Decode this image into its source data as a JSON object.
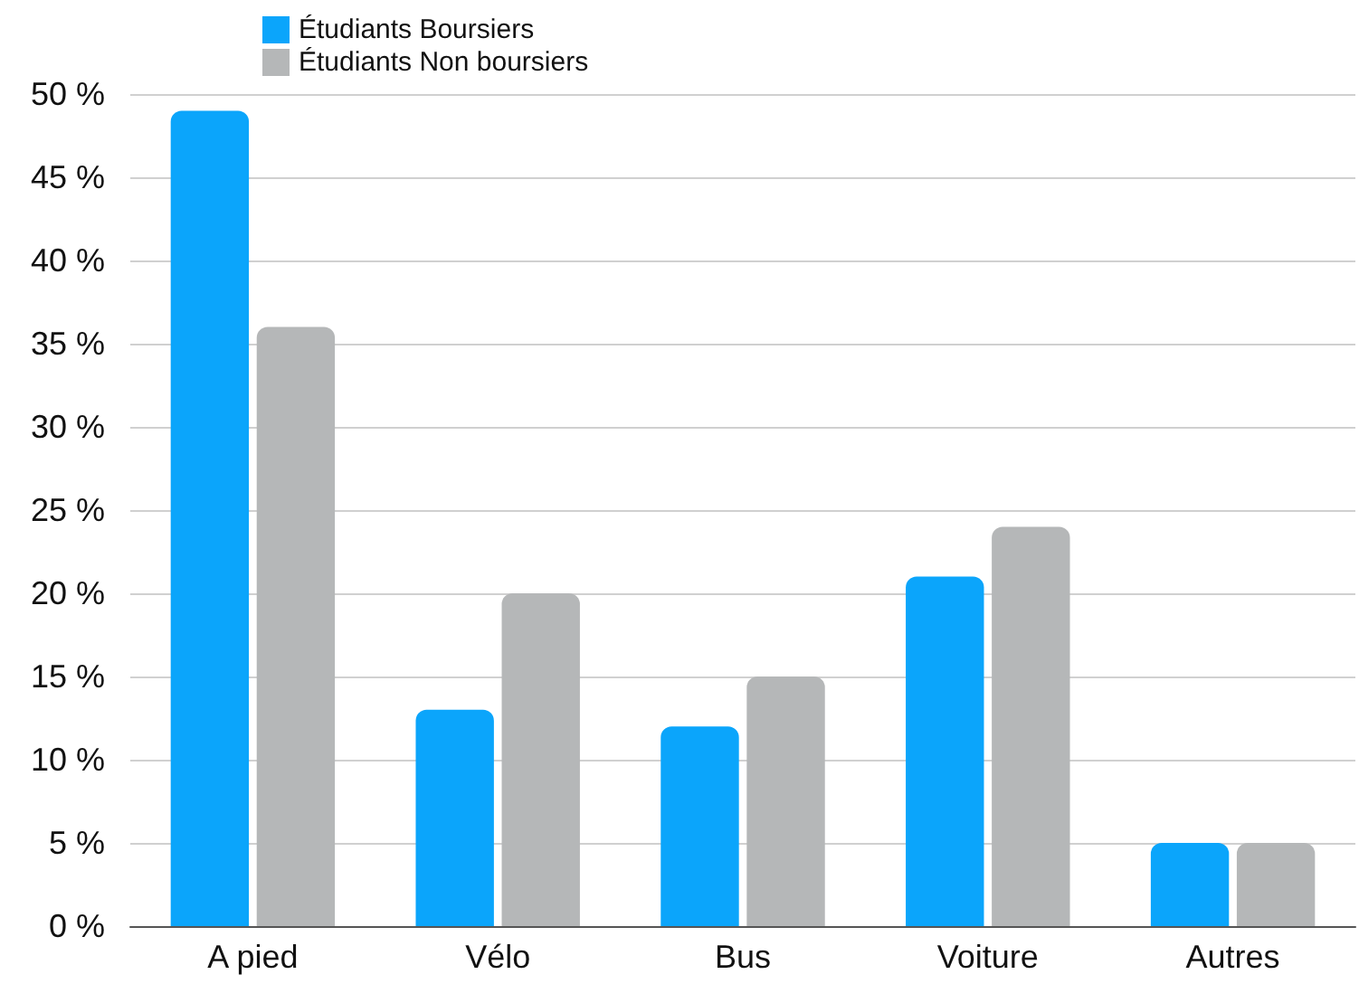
{
  "chart_data": {
    "type": "bar",
    "categories": [
      "A pied",
      "Vélo",
      "Bus",
      "Voiture",
      "Autres"
    ],
    "series": [
      {
        "name": "Étudiants Boursiers",
        "color": "#0ba5fb",
        "values": [
          49,
          13,
          12,
          21,
          5
        ]
      },
      {
        "name": "Étudiants Non boursiers",
        "color": "#b5b7b8",
        "values": [
          36,
          20,
          15,
          24,
          5
        ]
      }
    ],
    "ylim": [
      0,
      50
    ],
    "yticks": [
      {
        "value": 0,
        "label": "0 %"
      },
      {
        "value": 5,
        "label": "5 %"
      },
      {
        "value": 10,
        "label": "10 %"
      },
      {
        "value": 15,
        "label": "15 %"
      },
      {
        "value": 20,
        "label": "20 %"
      },
      {
        "value": 25,
        "label": "25 %"
      },
      {
        "value": 30,
        "label": "30 %"
      },
      {
        "value": 35,
        "label": "35 %"
      },
      {
        "value": 40,
        "label": "40 %"
      },
      {
        "value": 45,
        "label": "45 %"
      },
      {
        "value": 50,
        "label": "50 %"
      }
    ],
    "grid": "y",
    "legend": "top left"
  }
}
